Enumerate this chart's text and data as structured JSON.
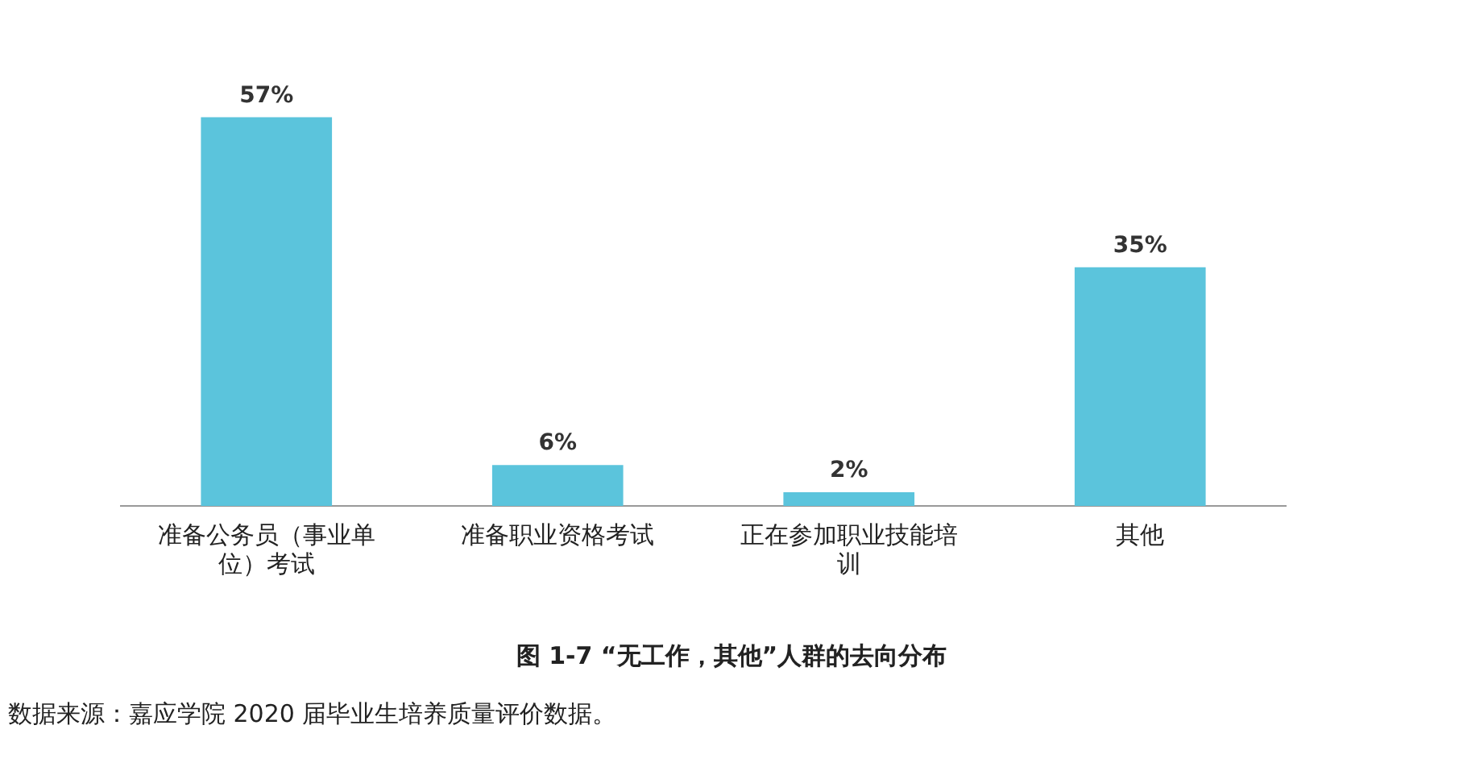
{
  "chart_data": {
    "type": "bar",
    "title": "图 1-7 “无工作，其他”人群的去向分布",
    "categories": [
      "准备公务员（事业单位）考试",
      "准备职业资格考试",
      "正在参加职业技能培训",
      "其他"
    ],
    "values": [
      57,
      6,
      2,
      35
    ],
    "value_labels": [
      "57%",
      "6%",
      "2%",
      "35%"
    ],
    "color": "#5bc4dc",
    "grid": false,
    "legend": false,
    "annotations": [
      "数据来源：嘉应学院 2020 届毕业生培养质量评价数据。"
    ]
  }
}
